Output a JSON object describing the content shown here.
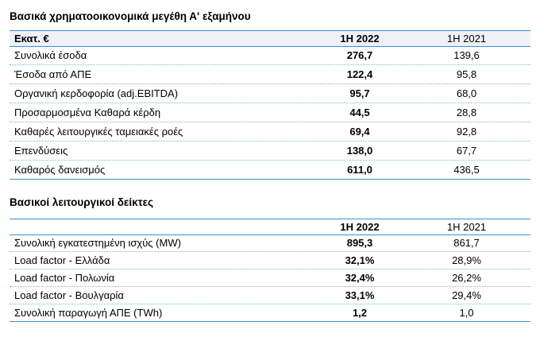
{
  "section1": {
    "title": "Βασικά χρηματοοικονομικά μεγέθη Α' εξαμήνου",
    "header": {
      "label": "Εκατ. €",
      "col1": "1Η 2022",
      "col2": "1Η 2021"
    },
    "rows": [
      {
        "label": "Συνολικά έσοδα",
        "v2022": "276,7",
        "v2021": "139,6"
      },
      {
        "label": "Έσοδα από ΑΠΕ",
        "v2022": "122,4",
        "v2021": "95,8"
      },
      {
        "label": "Οργανική κερδοφορία (adj.EBITDA)",
        "v2022": "95,7",
        "v2021": "68,0"
      },
      {
        "label": "Προσαρμοσμένα Καθαρά κέρδη",
        "v2022": "44,5",
        "v2021": "28,8"
      },
      {
        "label": "Καθαρές λειτουργικές ταμειακές ροές",
        "v2022": "69,4",
        "v2021": "92,8"
      },
      {
        "label": "Επενδύσεις",
        "v2022": "138,0",
        "v2021": "67,7"
      },
      {
        "label": "Καθαρός δανεισμός",
        "v2022": "611,0",
        "v2021": "436,5"
      }
    ]
  },
  "section2": {
    "title": "Βασικοί λειτουργικοί δείκτες",
    "header": {
      "label": "",
      "col1": "1Η 2022",
      "col2": "1Η 2021"
    },
    "rows": [
      {
        "label": "Συνολική εγκατεστημένη ισχύς (MW)",
        "v2022": "895,3",
        "v2021": "861,7"
      },
      {
        "label": "Load factor - Ελλάδα",
        "v2022": "32,1%",
        "v2021": "28,9%"
      },
      {
        "label": "Load factor - Πολωνία",
        "v2022": "32,4%",
        "v2021": "26,2%"
      },
      {
        "label": "Load factor - Βουλγαρία",
        "v2022": "33,1%",
        "v2021": "29,4%"
      },
      {
        "label": "Συνολική παραγωγή ΑΠΕ (TWh)",
        "v2022": "1,2",
        "v2021": "1,0"
      }
    ]
  }
}
